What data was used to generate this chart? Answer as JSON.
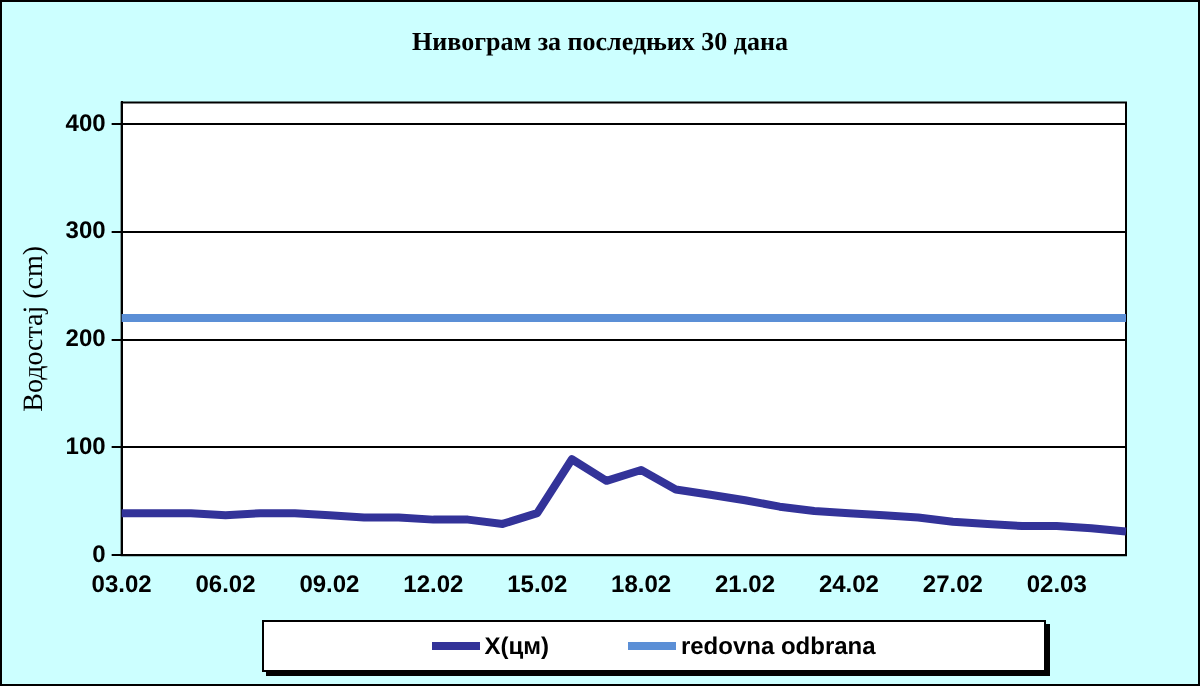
{
  "chart_data": {
    "type": "line",
    "title": "Нивограм за последњих 30 дана",
    "ylabel": "Водостај (cm)",
    "categories": [
      "03.02",
      null,
      null,
      "06.02",
      null,
      null,
      "09.02",
      null,
      null,
      "12.02",
      null,
      null,
      "15.02",
      null,
      null,
      "18.02",
      null,
      null,
      "21.02",
      null,
      null,
      "24.02",
      null,
      null,
      "27.02",
      null,
      null,
      "02.03",
      null,
      null
    ],
    "series": [
      {
        "name": "X(цм)",
        "color": "#333399",
        "values": [
          39,
          39,
          39,
          37,
          39,
          39,
          37,
          35,
          35,
          33,
          33,
          29,
          39,
          89,
          69,
          79,
          61,
          56,
          51,
          45,
          41,
          39,
          37,
          35,
          31,
          29,
          27,
          27,
          25,
          22
        ]
      },
      {
        "name": "redovna odbrana",
        "color": "#5b8fd6",
        "values": [
          220,
          220,
          220,
          220,
          220,
          220,
          220,
          220,
          220,
          220,
          220,
          220,
          220,
          220,
          220,
          220,
          220,
          220,
          220,
          220,
          220,
          220,
          220,
          220,
          220,
          220,
          220,
          220,
          220,
          220
        ]
      }
    ],
    "ylim": [
      0,
      420
    ],
    "yticks": [
      0,
      100,
      200,
      300,
      400
    ],
    "grid": "y",
    "legend": "bottom",
    "marker": "none",
    "line_style": "solid"
  }
}
